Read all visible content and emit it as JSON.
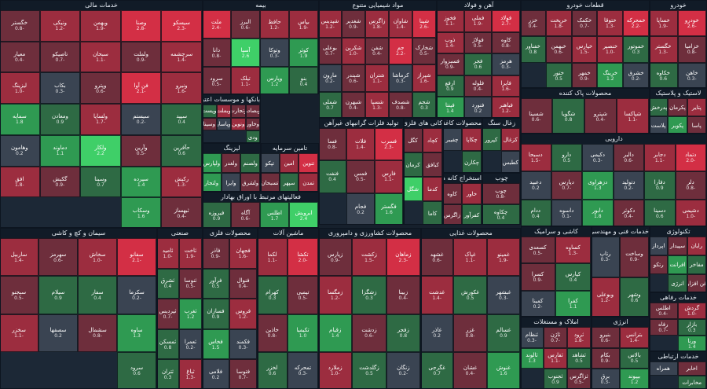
{
  "colors": {
    "red_strong": "#d32f45",
    "red": "#9c2d3f",
    "red_weak": "#6e2e3c",
    "neutral": "#3a4452",
    "green_weak": "#2e6a44",
    "green": "#2f9a52",
    "green_strong": "#3fcf68"
  },
  "sectors": [
    {
      "name": "خدمات مالی",
      "tickers": [
        [
          "سیسکو",
          "-2.3"
        ],
        [
          "وصنا",
          "-2.8"
        ],
        [
          "وبهمن",
          "-1.9"
        ],
        [
          "ونیکی",
          "-1.2"
        ],
        [
          "خگستر",
          "-0.8"
        ],
        [
          "سرچشمه",
          "-1.4"
        ],
        [
          "ولملت",
          "-0.9"
        ],
        [
          "سبحان",
          "-1.1"
        ],
        [
          "تاصیکو",
          "-0.7"
        ],
        [
          "معیار",
          "-0.4"
        ],
        [
          "ونیرو",
          "-1.6"
        ],
        [
          "فن آوا",
          "-2.1"
        ],
        [
          "وپترو",
          "-0.6"
        ],
        [
          "بکاب",
          "-0.3"
        ],
        [
          "لیزینگ",
          "-1.0"
        ],
        [
          "سپید",
          "0.4"
        ],
        [
          "سیستم",
          "-0.2"
        ],
        [
          "ولساپا",
          "-1.7"
        ],
        [
          "ومعادن",
          "0.9"
        ],
        [
          "سمایه",
          "1.8"
        ],
        [
          "حآفرین",
          "0.6"
        ],
        [
          "وآرین",
          "-0.5"
        ],
        [
          "ولکار",
          "2.2"
        ],
        [
          "دماوند",
          "1.1"
        ],
        [
          "وهامون",
          "0.2"
        ],
        [
          "رکیش",
          "-1.3"
        ],
        [
          "سپرده",
          "1.4"
        ],
        [
          "وسینا",
          "0.7"
        ],
        [
          "گکیش",
          "-0.9"
        ],
        [
          "افق",
          "-1.8"
        ],
        [
          "ثبهساز",
          "-0.4"
        ],
        [
          "وسکاب",
          "1.6"
        ]
      ]
    },
    {
      "name": "بیمه",
      "tickers": [
        [
          "بپاس",
          "-1.9"
        ],
        [
          "حافظ",
          "-1.2"
        ],
        [
          "البرز",
          "-0.6"
        ],
        [
          "ملت",
          "-2.4"
        ],
        [
          "کوثر",
          "1.9"
        ],
        [
          "وتوکا",
          "-0.3"
        ],
        [
          "آسیا",
          "2.6"
        ],
        [
          "دانا",
          "-0.8"
        ],
        [
          "بنو",
          "0.4"
        ],
        [
          "وپارس",
          "1.2"
        ],
        [
          "تیلک",
          "-1.1"
        ],
        [
          "سرود",
          "-0.5"
        ]
      ]
    },
    {
      "name": "بانکها و موسسات اعتباری",
      "tickers": [
        [
          "وبصادر",
          "-0.8"
        ],
        [
          "وتجارت",
          "-0.4"
        ],
        [
          "وبملت",
          "-1.2"
        ],
        [
          "وپست",
          "0.3"
        ],
        [
          "وخاور",
          "-0.6"
        ],
        [
          "ونوین",
          "-1.4"
        ],
        [
          "وپاسار",
          "-0.2"
        ],
        [
          "وسینا",
          "-0.9"
        ],
        [
          "ودی",
          "0.5"
        ]
      ]
    },
    {
      "name": "لیزینگ",
      "tickers": [
        [
          "ولصنم",
          "0.6"
        ],
        [
          "ولغدر",
          "-0.7"
        ],
        [
          "ولپارس",
          "1.1"
        ],
        [
          "ولشرق",
          "-0.4"
        ],
        [
          "وایرا",
          "0.2"
        ],
        [
          "ولتجار",
          "1.3"
        ]
      ]
    },
    {
      "name": "تامین سرمایه",
      "tickers": [
        [
          "تنوین",
          "-2.1"
        ],
        [
          "امین",
          "-1.0"
        ],
        [
          "تپکو",
          "-0.3"
        ],
        [
          "تمدن",
          "-1.6"
        ],
        [
          "سپهر",
          "0.8"
        ],
        [
          "تسبحان",
          "-0.5"
        ]
      ]
    },
    {
      "name": "فعالیتهای مرتبط با اوراق بهادار",
      "tickers": [
        [
          "ابرویش",
          "2.4"
        ],
        [
          "اطلس",
          "1.7"
        ],
        [
          "آگاه",
          "-0.6"
        ],
        [
          "فیروزه",
          "0.9"
        ]
      ]
    },
    {
      "name": "مواد شیمیایی متنوع",
      "tickers": [
        [
          "شپنا",
          "-2.6"
        ],
        [
          "شاوان",
          "-1.4"
        ],
        [
          "زاگرس",
          "-1.8"
        ],
        [
          "شغدیر",
          "-0.9"
        ],
        [
          "شپدیس",
          "-1.2"
        ],
        [
          "شخارک",
          "-0.5"
        ],
        [
          "جم",
          "-2.2"
        ],
        [
          "شفن",
          "-0.4"
        ],
        [
          "شکربن",
          "-1.0"
        ],
        [
          "بوعلی",
          "-0.7"
        ],
        [
          "شیراز",
          "-1.6"
        ],
        [
          "کرماشا",
          "-0.3"
        ],
        [
          "شتران",
          "-1.1"
        ],
        [
          "شبندر",
          "-0.6"
        ],
        [
          "مارون",
          "-0.2"
        ],
        [
          "شجم",
          "0.3"
        ],
        [
          "شصدف",
          "-0.8"
        ],
        [
          "شسپا",
          "-1.3"
        ],
        [
          "شبهرن",
          "-0.4"
        ],
        [
          "شملی",
          "0.7"
        ]
      ]
    },
    {
      "name": "آهن و فولاد",
      "tickers": [
        [
          "فولاد",
          "-2.7"
        ],
        [
          "فملی",
          "-1.9"
        ],
        [
          "فخوز",
          "-1.1"
        ],
        [
          "کاوه",
          "-0.8"
        ],
        [
          "فولاژ",
          "-0.5"
        ],
        [
          "ذوب",
          "-1.4"
        ],
        [
          "هرمز",
          "-0.3"
        ],
        [
          "فجر",
          "0.6"
        ],
        [
          "فسبزوار",
          "-0.9"
        ],
        [
          "فایرا",
          "-1.6"
        ],
        [
          "فلوله",
          "-0.4"
        ],
        [
          "ارفع",
          "0.9"
        ],
        [
          "فباهنر",
          "-1.2"
        ],
        [
          "فنورد",
          "0.2"
        ],
        [
          "فپنتا",
          "1.4"
        ]
      ]
    },
    {
      "name": "تولید فلزات گرانبهای غیرآهن",
      "tickers": [
        [
          "فسرب",
          "-2.3"
        ],
        [
          "فلات",
          "-1.4"
        ],
        [
          "فسا",
          "-0.8"
        ],
        [
          "فارس",
          "-1.1"
        ],
        [
          "فمس",
          "-0.5"
        ],
        [
          "فنفت",
          "0.4"
        ],
        [
          "فگستر",
          "1.6"
        ],
        [
          "فجام",
          "0.2"
        ]
      ]
    },
    {
      "name": "کانی های فلزی",
      "tickers": [
        [
          "کچاد",
          "-1.8"
        ],
        [
          "کگل",
          "-0.9"
        ],
        [
          "کبافق",
          "-0.4"
        ],
        [
          "کرمان",
          "0.3"
        ],
        [
          "کدما",
          "-1.2"
        ],
        [
          "شگل",
          "2.1"
        ],
        [
          "کاما",
          "0.8"
        ]
      ]
    },
    {
      "name": "محصولات کاغذی",
      "tickers": [
        [
          "چکاپا",
          "-1.5"
        ],
        [
          "چفیبر",
          "-0.3"
        ],
        [
          "چکارن",
          "0.5"
        ]
      ]
    },
    {
      "name": "سیمان و کچ و کاشی",
      "tickers": [
        [
          "سفانو",
          "-2.1"
        ],
        [
          "سخاش",
          "-1.0"
        ],
        [
          "سهرمز",
          "-0.6"
        ],
        [
          "ساربیل",
          "-1.4"
        ],
        [
          "سکرما",
          "-0.2"
        ],
        [
          "سفار",
          "0.4"
        ],
        [
          "سیلام",
          "0.9"
        ],
        [
          "سبجنو",
          "-0.5"
        ],
        [
          "ساوه",
          "1.3"
        ],
        [
          "سشمال",
          "-0.8"
        ],
        [
          "سصفها",
          "0.2"
        ],
        [
          "سخزر",
          "-1.1"
        ],
        [
          "سرود",
          "0.6"
        ]
      ]
    },
    {
      "name": "استخراج کانه های فلزی",
      "tickers": [
        [
          "خاور",
          "-1.6"
        ],
        [
          "کاوه",
          "-0.4"
        ],
        [
          "کفرآور",
          "0.7"
        ],
        [
          "زاگرس",
          "-0.9"
        ]
      ]
    },
    {
      "name": "زغال سنگ",
      "tickers": [
        [
          "کزغال",
          "-1.2"
        ],
        [
          "کپرور",
          "0.5"
        ],
        [
          "کطبس",
          "-0.3"
        ]
      ]
    },
    {
      "name": "چوب",
      "tickers": [
        [
          "چوب",
          "-0.8"
        ],
        [
          "چکاوه",
          "0.4"
        ]
      ]
    },
    {
      "name": "قطعات خودرو",
      "tickers": [
        [
          "خمحرکه",
          "-2.2"
        ],
        [
          "ختوقا",
          "-1.3"
        ],
        [
          "خکمک",
          "-0.7"
        ],
        [
          "خریخت",
          "-1.8"
        ],
        [
          "خزر",
          "-0.4"
        ],
        [
          "خموتور",
          "0.3"
        ],
        [
          "خنصیر",
          "-1.0"
        ],
        [
          "خپارس",
          "-1.5"
        ],
        [
          "خبهمن",
          "-0.6"
        ],
        [
          "خفناور",
          "0.8"
        ],
        [
          "خشرق",
          "-0.2"
        ],
        [
          "خرینگ",
          "1.2"
        ],
        [
          "خمهر",
          "-0.9"
        ],
        [
          "ختور",
          "0.5"
        ]
      ]
    },
    {
      "name": "خودرو",
      "tickers": [
        [
          "خودرو",
          "-2.6"
        ],
        [
          "خساپا",
          "-1.9"
        ],
        [
          "خزامیا",
          "-0.8"
        ],
        [
          "خگستر",
          "-1.3"
        ],
        [
          "خاهن",
          "-0.3"
        ],
        [
          "خکاوه",
          "0.6"
        ]
      ]
    },
    {
      "name": "محصولات پاک کننده",
      "tickers": [
        [
          "شپاکسا",
          "-1.1"
        ],
        [
          "شپترو",
          "-0.4"
        ],
        [
          "شگویا",
          "0.8"
        ],
        [
          "شسینا",
          "-0.6"
        ]
      ]
    },
    {
      "name": "لاستیک و پلاستیک",
      "tickers": [
        [
          "پتایر",
          "-1.4"
        ],
        [
          "پکرمان",
          "-0.5"
        ],
        [
          "پدرخش",
          "0.3"
        ],
        [
          "پاسا",
          "-0.9"
        ],
        [
          "پکویر",
          "1.1"
        ],
        [
          "پلاست",
          "-0.2"
        ]
      ]
    },
    {
      "name": "دارویی",
      "tickers": [
        [
          "دتماد",
          "-2.0"
        ],
        [
          "دجابر",
          "-1.1"
        ],
        [
          "دالبر",
          "-0.6"
        ],
        [
          "دکیمی",
          "-0.3"
        ],
        [
          "دارو",
          "0.5"
        ],
        [
          "دسبحا",
          "-1.5"
        ],
        [
          "دلر",
          "-0.8"
        ],
        [
          "دفارا",
          "0.9"
        ],
        [
          "دتولید",
          "-0.2"
        ],
        [
          "دزهراوی",
          "1.3"
        ],
        [
          "دپارس",
          "-0.7"
        ],
        [
          "دعبید",
          "0.2"
        ],
        [
          "دشیمی",
          "-1.0"
        ],
        [
          "دسینا",
          "0.6"
        ],
        [
          "دکوثر",
          "-0.4"
        ],
        [
          "دابور",
          "1.8"
        ],
        [
          "داسوه",
          "-0.1"
        ],
        [
          "ددام",
          "0.4"
        ]
      ]
    },
    {
      "name": "صنعتی",
      "tickers": [
        [
          "ثاخت",
          "-1.9"
        ],
        [
          "ثامید",
          "-1.0"
        ],
        [
          "ثنوسا",
          "-0.5"
        ],
        [
          "ثشرق",
          "0.4"
        ],
        [
          "ثغرب",
          "1.2"
        ],
        [
          "ثپردیس",
          "-0.7"
        ],
        [
          "ثعمرا",
          "-0.2"
        ],
        [
          "ثمسکن",
          "0.8"
        ],
        [
          "ثباغ",
          "-1.3"
        ],
        [
          "ثتران",
          "0.3"
        ]
      ]
    },
    {
      "name": "محصولات فلزی",
      "tickers": [
        [
          "فجهان",
          "-1.6"
        ],
        [
          "فاذر",
          "-0.9"
        ],
        [
          "فنوال",
          "-0.4"
        ],
        [
          "فرآور",
          "0.5"
        ],
        [
          "فروس",
          "-1.2"
        ],
        [
          "فسازان",
          "0.9"
        ],
        [
          "فکمند",
          "-0.3"
        ],
        [
          "فخاس",
          "1.5"
        ],
        [
          "فتوسا",
          "-0.7"
        ],
        [
          "فلامی",
          "0.2"
        ]
      ]
    },
    {
      "name": "ماشین آلات",
      "tickers": [
        [
          "تکشا",
          "-2.0"
        ],
        [
          "لکما",
          "-1.1"
        ],
        [
          "تپمپی",
          "-0.5"
        ],
        [
          "کهرام",
          "0.3"
        ],
        [
          "تکیمیا",
          "1.0"
        ],
        [
          "خاذین",
          "-0.8"
        ],
        [
          "تمحرکه",
          "-0.3"
        ],
        [
          "لخزر",
          "0.6"
        ]
      ]
    },
    {
      "name": "محصولات کشاورزی و دامپروری",
      "tickers": [
        [
          "زماهان",
          "-2.3"
        ],
        [
          "زکشت",
          "-1.5"
        ],
        [
          "زپارس",
          "-0.9"
        ],
        [
          "زبینا",
          "-0.4"
        ],
        [
          "زشگزا",
          "0.3"
        ],
        [
          "زمگسا",
          "-1.2"
        ],
        [
          "زفجر",
          "0.8"
        ],
        [
          "زدشت",
          "-0.6"
        ],
        [
          "زقیام",
          "1.4"
        ],
        [
          "زنگان",
          "-0.2"
        ],
        [
          "زگلدشت",
          "0.5"
        ],
        [
          "زملارد",
          "-1.0"
        ]
      ]
    },
    {
      "name": "محصولات غذایی",
      "tickers": [
        [
          "غمینو",
          "-1.9"
        ],
        [
          "غپاک",
          "-1.1"
        ],
        [
          "غشهد",
          "-0.6"
        ],
        [
          "غبشهر",
          "-0.3"
        ],
        [
          "غکورش",
          "0.5"
        ],
        [
          "غدشت",
          "-1.4"
        ],
        [
          "غسالم",
          "0.9"
        ],
        [
          "غزر",
          "-0.8"
        ],
        [
          "غاذر",
          "0.2"
        ],
        [
          "غنوش",
          "1.6"
        ],
        [
          "غشان",
          "-0.4"
        ],
        [
          "غگرجی",
          "0.7"
        ]
      ]
    },
    {
      "name": "کاشی و سرامیک",
      "tickers": [
        [
          "کساوه",
          "-1.3"
        ],
        [
          "کسعدی",
          "-0.5"
        ],
        [
          "کپارس",
          "0.4"
        ],
        [
          "کسرا",
          "-0.9"
        ],
        [
          "کفرا",
          "1.1"
        ],
        [
          "کمینا",
          "-0.2"
        ]
      ]
    },
    {
      "name": "خدمات فنی و مهندسی",
      "tickers": [
        [
          "وساخت",
          "-0.9"
        ],
        [
          "رتاپ",
          "-0.3"
        ],
        [
          "وشهر",
          "0.6"
        ],
        [
          "وبوعلی",
          "-1.2"
        ]
      ]
    },
    {
      "name": "املاک و مستغلات",
      "tickers": [
        [
          "ثرود",
          "-1.8"
        ],
        [
          "ثاژن",
          "-0.7"
        ],
        [
          "ثنظام",
          "-0.3"
        ],
        [
          "ثشاهد",
          "0.5"
        ],
        [
          "ثفارس",
          "-1.1"
        ],
        [
          "ثالوند",
          "1.3"
        ],
        [
          "ثزاگرس",
          "-0.5"
        ],
        [
          "ثجنوب",
          "0.9"
        ]
      ]
    },
    {
      "name": "تکنولوژی",
      "tickers": [
        [
          "رایان",
          "-1.2"
        ],
        [
          "سپیدار",
          "-0.6"
        ],
        [
          "اپرداز",
          "-0.2"
        ],
        [
          "مفاخر",
          "0.4"
        ],
        [
          "افرانت",
          "1.0"
        ],
        [
          "رتکو",
          "-0.8"
        ],
        [
          "فن افزار",
          "-0.4"
        ],
        [
          "انرژی",
          "0.9"
        ]
      ]
    },
    {
      "name": "انرژی",
      "tickers": [
        [
          "بترانس",
          "-1.4"
        ],
        [
          "بنیرو",
          "-0.6"
        ],
        [
          "بالاس",
          "0.5"
        ],
        [
          "بکام",
          "-0.9"
        ],
        [
          "بپیوند",
          "1.2"
        ],
        [
          "برق",
          "-0.3"
        ]
      ]
    },
    {
      "name": "خدمات رفاهی",
      "tickers": [
        [
          "گردش",
          "-1.0"
        ],
        [
          "اطلس",
          "-0.4"
        ],
        [
          "بازار",
          "0.3"
        ],
        [
          "رفاه",
          "-0.7"
        ],
        [
          "ورنا",
          "1.4"
        ]
      ]
    },
    {
      "name": "خدمات ارتباطی",
      "tickers": [
        [
          "اخابر",
          "-0.9"
        ],
        [
          "همراه",
          "-0.3"
        ],
        [
          "مخابرات",
          "0.6"
        ]
      ]
    }
  ]
}
